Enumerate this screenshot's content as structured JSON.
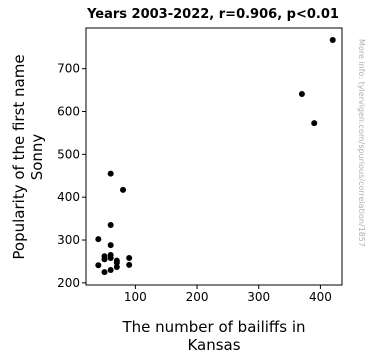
{
  "chart_data": {
    "type": "scatter",
    "title": "Years 2003-2022, r=0.906, p<0.01",
    "xlabel_lines": [
      "The number of bailiffs in",
      "Kansas"
    ],
    "ylabel_lines": [
      "Popularity of the first name",
      "Sonny"
    ],
    "xlim": [
      20,
      435
    ],
    "ylim": [
      195,
      795
    ],
    "xticks": [
      100,
      200,
      300,
      400
    ],
    "yticks": [
      200,
      300,
      400,
      500,
      600,
      700
    ],
    "grid": false,
    "watermark": "More info: tylervigen.com/spurious/correlation/1857",
    "point_color": "#000000",
    "points": [
      {
        "x": 40,
        "y": 302
      },
      {
        "x": 40,
        "y": 241
      },
      {
        "x": 50,
        "y": 255
      },
      {
        "x": 50,
        "y": 262
      },
      {
        "x": 50,
        "y": 225
      },
      {
        "x": 60,
        "y": 455
      },
      {
        "x": 60,
        "y": 335
      },
      {
        "x": 60,
        "y": 288
      },
      {
        "x": 60,
        "y": 265
      },
      {
        "x": 60,
        "y": 258
      },
      {
        "x": 60,
        "y": 230
      },
      {
        "x": 70,
        "y": 252
      },
      {
        "x": 70,
        "y": 247
      },
      {
        "x": 70,
        "y": 237
      },
      {
        "x": 80,
        "y": 417
      },
      {
        "x": 90,
        "y": 258
      },
      {
        "x": 90,
        "y": 242
      },
      {
        "x": 370,
        "y": 641
      },
      {
        "x": 390,
        "y": 573
      },
      {
        "x": 420,
        "y": 767
      }
    ]
  }
}
